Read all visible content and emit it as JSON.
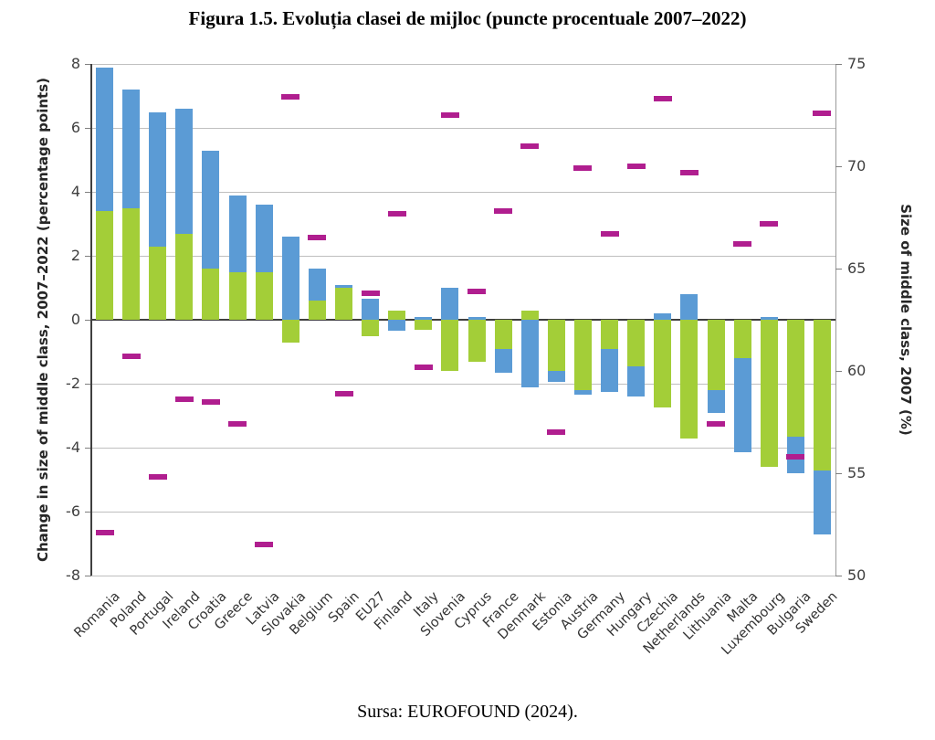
{
  "figure": {
    "title": "Figura 1.5. Evoluția clasei de mijloc (puncte procentuale 2007–2022)",
    "source": "Sursa: EUROFOUND (2024)."
  },
  "chart_data": {
    "type": "bar",
    "subtype": "stacked-bars-with-dash-markers",
    "title": "Figura 1.5. Evoluția clasei de mijloc (puncte procentuale 2007–2022)",
    "left_axis": {
      "label": "Change in size of middle class, 2007–2022 (percentage points)",
      "ticks": [
        8,
        6,
        4,
        2,
        0,
        -2,
        -4,
        -6,
        -8
      ],
      "range": [
        -8,
        8
      ],
      "grid": true
    },
    "right_axis": {
      "label": "Size of middle class, 2007 (%)",
      "ticks": [
        75,
        70,
        65,
        60,
        55,
        50
      ],
      "range": [
        50,
        75
      ]
    },
    "categories": [
      "Romania",
      "Poland",
      "Portugal",
      "Ireland",
      "Croatia",
      "Greece",
      "Latvia",
      "Slovakia",
      "Belgium",
      "Spain",
      "EU27",
      "Finland",
      "Italy",
      "Slovenia",
      "Cyprus",
      "France",
      "Denmark",
      "Estonia",
      "Austria",
      "Germany",
      "Hungary",
      "Czechia",
      "Netherlands",
      "Lithuania",
      "Malta",
      "Luxembourg",
      "Bulgaria",
      "Sweden"
    ],
    "series": [
      {
        "name": "change-period-1-green",
        "color": "#A3CE38",
        "values": [
          3.4,
          3.5,
          2.3,
          2.7,
          1.6,
          1.5,
          1.5,
          -0.7,
          0.6,
          1.0,
          -0.5,
          0.3,
          -0.3,
          -1.6,
          -1.3,
          -0.9,
          0.3,
          -1.6,
          -2.2,
          -0.9,
          -1.45,
          -2.75,
          -3.7,
          -2.2,
          -1.2,
          -4.6,
          -3.65,
          -4.7
        ]
      },
      {
        "name": "change-period-2-blue",
        "color": "#5B9BD5",
        "values": [
          4.5,
          3.7,
          4.2,
          3.9,
          3.7,
          2.4,
          2.1,
          2.6,
          1.0,
          0.1,
          0.65,
          -0.35,
          0.1,
          1.0,
          0.1,
          -0.75,
          -2.1,
          -0.35,
          -0.15,
          -1.35,
          -0.95,
          0.2,
          0.8,
          -0.7,
          -2.95,
          0.1,
          -1.15,
          -2.0
        ]
      }
    ],
    "markers": {
      "name": "size-of-middle-class-2007-pct",
      "color": "#B01E8F",
      "values": [
        52.1,
        60.7,
        54.8,
        58.6,
        58.5,
        57.4,
        51.5,
        73.4,
        66.5,
        58.9,
        63.8,
        67.7,
        60.2,
        72.5,
        63.9,
        67.8,
        71.0,
        57.0,
        69.9,
        66.7,
        70.0,
        73.3,
        69.7,
        57.4,
        66.2,
        67.2,
        55.8,
        72.6
      ]
    },
    "stacking_rule": "green plotted first from zero; blue stacks on green when same sign, otherwise starts at zero",
    "legend": "none visible"
  }
}
